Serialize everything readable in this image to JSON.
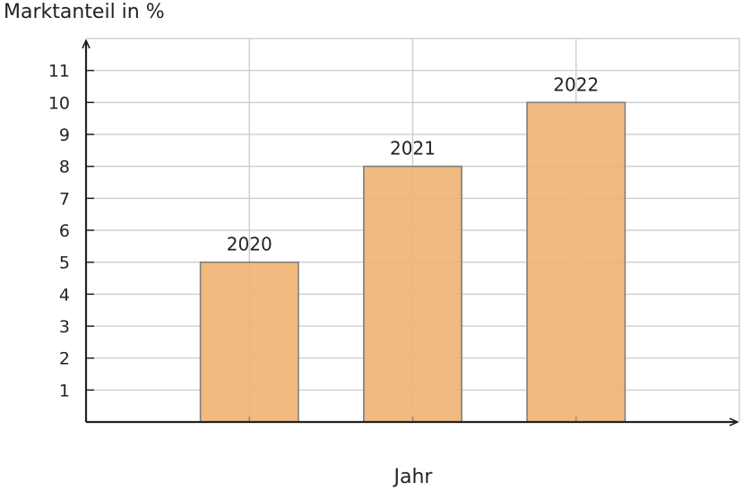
{
  "chart_data": {
    "type": "bar",
    "title": "",
    "ylabel": "Marktanteil in %",
    "xlabel": "Jahr",
    "categories": [
      "2020",
      "2021",
      "2022"
    ],
    "values": [
      5,
      8,
      10
    ],
    "data_labels": [
      "2020",
      "2021",
      "2022"
    ],
    "ylim": [
      0,
      12
    ],
    "y_ticks": [
      1,
      2,
      3,
      4,
      5,
      6,
      7,
      8,
      9,
      10,
      11
    ],
    "x_range": [
      0,
      4
    ],
    "grid": true,
    "legend": "none",
    "colors": {
      "bar_fill": "#F0B272",
      "bar_stroke": "#7F7F7F",
      "grid": "#D0D0D0",
      "axis": "#222222"
    }
  }
}
